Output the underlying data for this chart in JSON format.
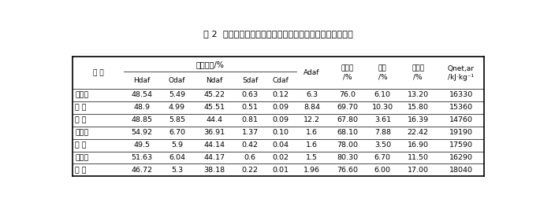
{
  "title": "表 2  几种典型生物质的元素分析、工业分析及低位发热热値",
  "rows": [
    [
      "玉米秸",
      "48.54",
      "5.49",
      "45.22",
      "0.63",
      "0.12",
      "6.3",
      "76.0",
      "6.10",
      "13.20",
      "16330"
    ],
    [
      "麦 秸",
      "48.9",
      "4.99",
      "45.51",
      "0.51",
      "0.09",
      "8.84",
      "69.70",
      "10.30",
      "15.80",
      "15360"
    ],
    [
      "稻 草",
      "48.85",
      "5.85",
      "44.4",
      "0.81",
      "0.09",
      "12.2",
      "67.80",
      "3.61",
      "16.39",
      "14760"
    ],
    [
      "花生壳",
      "54.92",
      "6.70",
      "36.91",
      "1.37",
      "0.10",
      "1.6",
      "68.10",
      "7.88",
      "22.42",
      "19190"
    ],
    [
      "柳 木",
      "49.5",
      "5.9",
      "44.14",
      "0.42",
      "0.04",
      "1.6",
      "78.00",
      "3.50",
      "16.90",
      "17590"
    ],
    [
      "白杨木",
      "51.63",
      "6.04",
      "44.17",
      "0.6",
      "0.02",
      "1.5",
      "80.30",
      "6.70",
      "11.50",
      "16290"
    ],
    [
      "松 木",
      "46.72",
      "5.3",
      "38.18",
      "0.22",
      "0.01",
      "1.96",
      "76.60",
      "6.00",
      "17.00",
      "18040"
    ]
  ],
  "element_group_label": "元素分析/%",
  "col_labels_span_both": [
    "种 类",
    "Adaf",
    "挥发分\n/%",
    "水分\n/%",
    "固定碳\n/%",
    "Qnet,ar\n/kJ·kg⁻¹"
  ],
  "col_labels_elem": [
    "Hdaf",
    "Odaf",
    "Ndaf",
    "Sdaf",
    "Cdaf"
  ],
  "background": "#ffffff",
  "line_color": "#000000"
}
